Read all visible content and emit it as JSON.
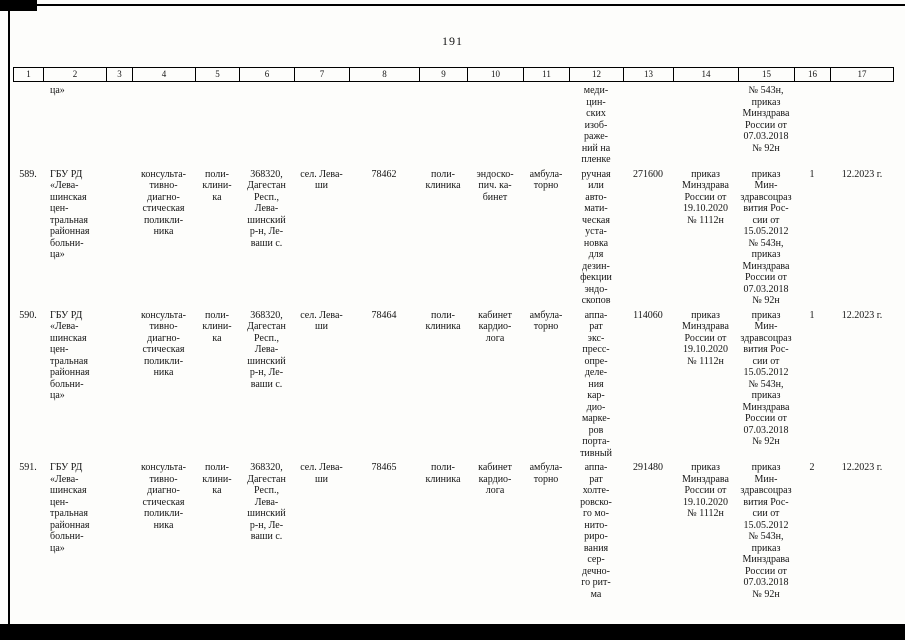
{
  "page_number": "191",
  "table": {
    "headers": [
      "1",
      "2",
      "3",
      "4",
      "5",
      "6",
      "7",
      "8",
      "9",
      "10",
      "11",
      "12",
      "13",
      "14",
      "15",
      "16",
      "17"
    ],
    "rows": [
      {
        "c1": "",
        "c2": "ца»",
        "c3": "",
        "c4": "",
        "c5": "",
        "c6": "",
        "c7": "",
        "c8": "",
        "c9": "",
        "c10": "",
        "c11": "",
        "c12": "меди-\nцин-\nских\nизоб-\nраже-\nний на\nпленке",
        "c13": "",
        "c14": "",
        "c15": "№ 543н,\nприказ\nМинздрава\nРоссии от\n07.03.2018\n№ 92н",
        "c16": "",
        "c17": ""
      },
      {
        "c1": "589.",
        "c2": "ГБУ РД\n«Лева-\nшинская\nцен-\nтральная\nрайонная\nбольни-\nца»",
        "c3": "",
        "c4": "консульта-\nтивно-\nдиагно-\nстическая\nполикли-\nника",
        "c5": "поли-\nклини-\nка",
        "c6": "368320,\nДагестан\nРесп.,\nЛева-\nшинский\nр-н, Ле-\nваши с.",
        "c7": "сел. Лева-\nши",
        "c8": "78462",
        "c9": "поли-\nклиника",
        "c10": "эндоско-\nпич. ка-\nбинет",
        "c11": "амбула-\nторно",
        "c12": "ручная\nили\nавто-\nмати-\nческая\nуста-\nновка\nдля\nдезин-\nфекции\nэндо-\nскопов",
        "c13": "271600",
        "c14": "приказ\nМинздрава\nРоссии от\n19.10.2020\n№ 1112н",
        "c15": "приказ\nМин-\nздравсоцраз\nвития Рос-\nсии от\n15.05.2012\n№ 543н,\nприказ\nМинздрава\nРоссии от\n07.03.2018\n№ 92н",
        "c16": "1",
        "c17": "12.2023 г."
      },
      {
        "c1": "590.",
        "c2": "ГБУ РД\n«Лева-\nшинская\nцен-\nтральная\nрайонная\nбольни-\nца»",
        "c3": "",
        "c4": "консульта-\nтивно-\nдиагно-\nстическая\nполикли-\nника",
        "c5": "поли-\nклини-\nка",
        "c6": "368320,\nДагестан\nРесп.,\nЛева-\nшинский\nр-н, Ле-\nваши с.",
        "c7": "сел. Лева-\nши",
        "c8": "78464",
        "c9": "поли-\nклиника",
        "c10": "кабинет\nкардио-\nлога",
        "c11": "амбула-\nторно",
        "c12": "аппа-\nрат\nэкс-\nпресс-\nопре-\nделе-\nния\nкар-\nдио-\nмарке-\nров\nпорта-\nтивный",
        "c13": "114060",
        "c14": "приказ\nМинздрава\nРоссии от\n19.10.2020\n№ 1112н",
        "c15": "приказ\nМин-\nздравсоцраз\nвития Рос-\nсии от\n15.05.2012\n№ 543н,\nприказ\nМинздрава\nРоссии от\n07.03.2018\n№ 92н",
        "c16": "1",
        "c17": "12.2023 г."
      },
      {
        "c1": "591.",
        "c2": "ГБУ РД\n«Лева-\nшинская\nцен-\nтральная\nрайонная\nбольни-\nца»",
        "c3": "",
        "c4": "консульта-\nтивно-\nдиагно-\nстическая\nполикли-\nника",
        "c5": "поли-\nклини-\nка",
        "c6": "368320,\nДагестан\nРесп.,\nЛева-\nшинский\nр-н, Ле-\nваши с.",
        "c7": "сел. Лева-\nши",
        "c8": "78465",
        "c9": "поли-\nклиника",
        "c10": "кабинет\nкардио-\nлога",
        "c11": "амбула-\nторно",
        "c12": "аппа-\nрат\nхолте-\nровско-\nго мо-\nнито-\nриро-\nвания\nсер-\nдечно-\nго рит-\nма",
        "c13": "291480",
        "c14": "приказ\nМинздрава\nРоссии от\n19.10.2020\n№ 1112н",
        "c15": "приказ\nМин-\nздравсоцраз\nвития Рос-\nсии от\n15.05.2012\n№ 543н,\nприказ\nМинздрава\nРоссии от\n07.03.2018\n№ 92н",
        "c16": "2",
        "c17": "12.2023 г."
      }
    ]
  }
}
